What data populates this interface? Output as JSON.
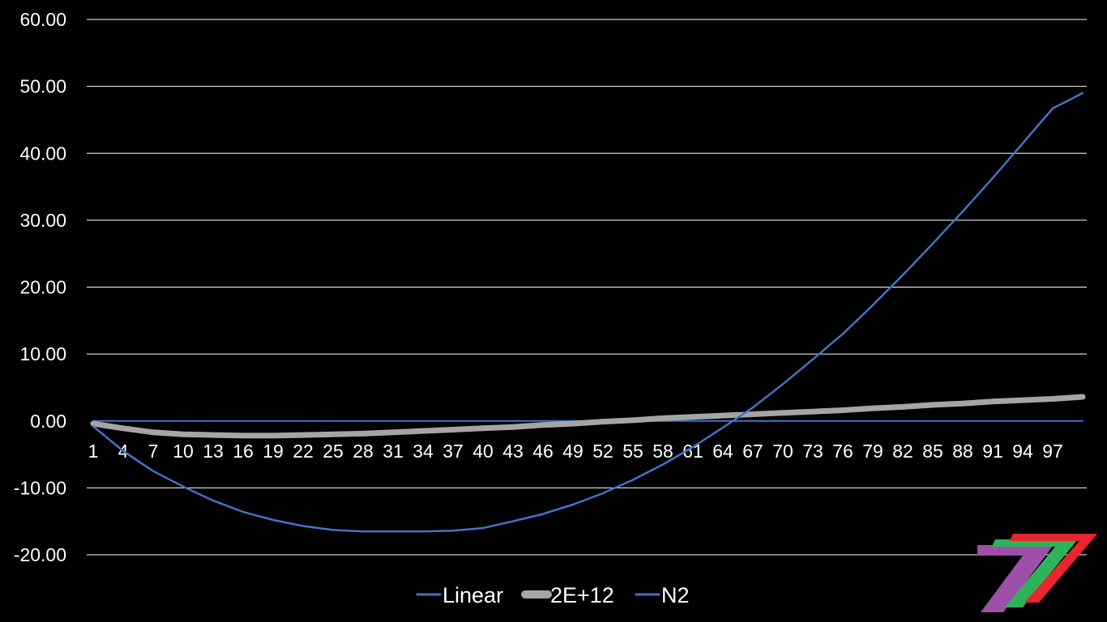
{
  "chart_data": {
    "type": "line",
    "title": "",
    "xlabel": "",
    "ylabel": "",
    "ylim": [
      -20,
      60
    ],
    "yticks": [
      "60.00",
      "50.00",
      "40.00",
      "30.00",
      "20.00",
      "10.00",
      "0.00",
      "-10.00",
      "-20.00"
    ],
    "ytick_values": [
      60,
      50,
      40,
      30,
      20,
      10,
      0,
      -10,
      -20
    ],
    "x_range": [
      1,
      100
    ],
    "xticks": [
      1,
      4,
      7,
      10,
      13,
      16,
      19,
      22,
      25,
      28,
      31,
      34,
      37,
      40,
      43,
      46,
      49,
      52,
      55,
      58,
      61,
      64,
      67,
      70,
      73,
      76,
      79,
      82,
      85,
      88,
      91,
      94,
      97
    ],
    "grid": true,
    "legend_position": "bottom",
    "x": [
      1,
      4,
      7,
      10,
      13,
      16,
      19,
      22,
      25,
      28,
      31,
      34,
      37,
      40,
      43,
      46,
      49,
      52,
      55,
      58,
      61,
      64,
      67,
      70,
      73,
      76,
      79,
      82,
      85,
      88,
      91,
      94,
      97,
      100
    ],
    "series": [
      {
        "name": "Linear",
        "color": "#4472C4",
        "values": [
          0,
          0,
          0,
          0,
          0,
          0,
          0,
          0,
          0,
          0,
          0,
          0,
          0,
          0,
          0,
          0,
          0,
          0,
          0,
          0,
          0,
          0,
          0,
          0,
          0,
          0,
          0,
          0,
          0,
          0,
          0,
          0,
          0,
          0
        ]
      },
      {
        "name": "2E+12",
        "color": "#A5A5A5",
        "values": [
          -0.4,
          -1.1,
          -1.7,
          -2.0,
          -2.1,
          -2.2,
          -2.2,
          -2.1,
          -2.0,
          -1.9,
          -1.7,
          -1.5,
          -1.3,
          -1.1,
          -0.9,
          -0.6,
          -0.4,
          -0.1,
          0.1,
          0.4,
          0.6,
          0.8,
          1.0,
          1.2,
          1.4,
          1.6,
          1.9,
          2.1,
          2.4,
          2.6,
          2.9,
          3.1,
          3.3,
          3.6
        ]
      },
      {
        "name": "N2",
        "color": "#4472C4",
        "values": [
          -0.8,
          -4.5,
          -7.5,
          -9.8,
          -11.9,
          -13.6,
          -14.8,
          -15.7,
          -16.3,
          -16.5,
          -16.5,
          -16.5,
          -16.4,
          -16.0,
          -15.0,
          -13.9,
          -12.5,
          -10.8,
          -8.8,
          -6.5,
          -3.9,
          -1.0,
          2.0,
          5.5,
          9.2,
          13.0,
          17.3,
          21.8,
          26.5,
          31.3,
          36.3,
          41.5,
          46.7,
          49.0
        ]
      }
    ]
  }
}
